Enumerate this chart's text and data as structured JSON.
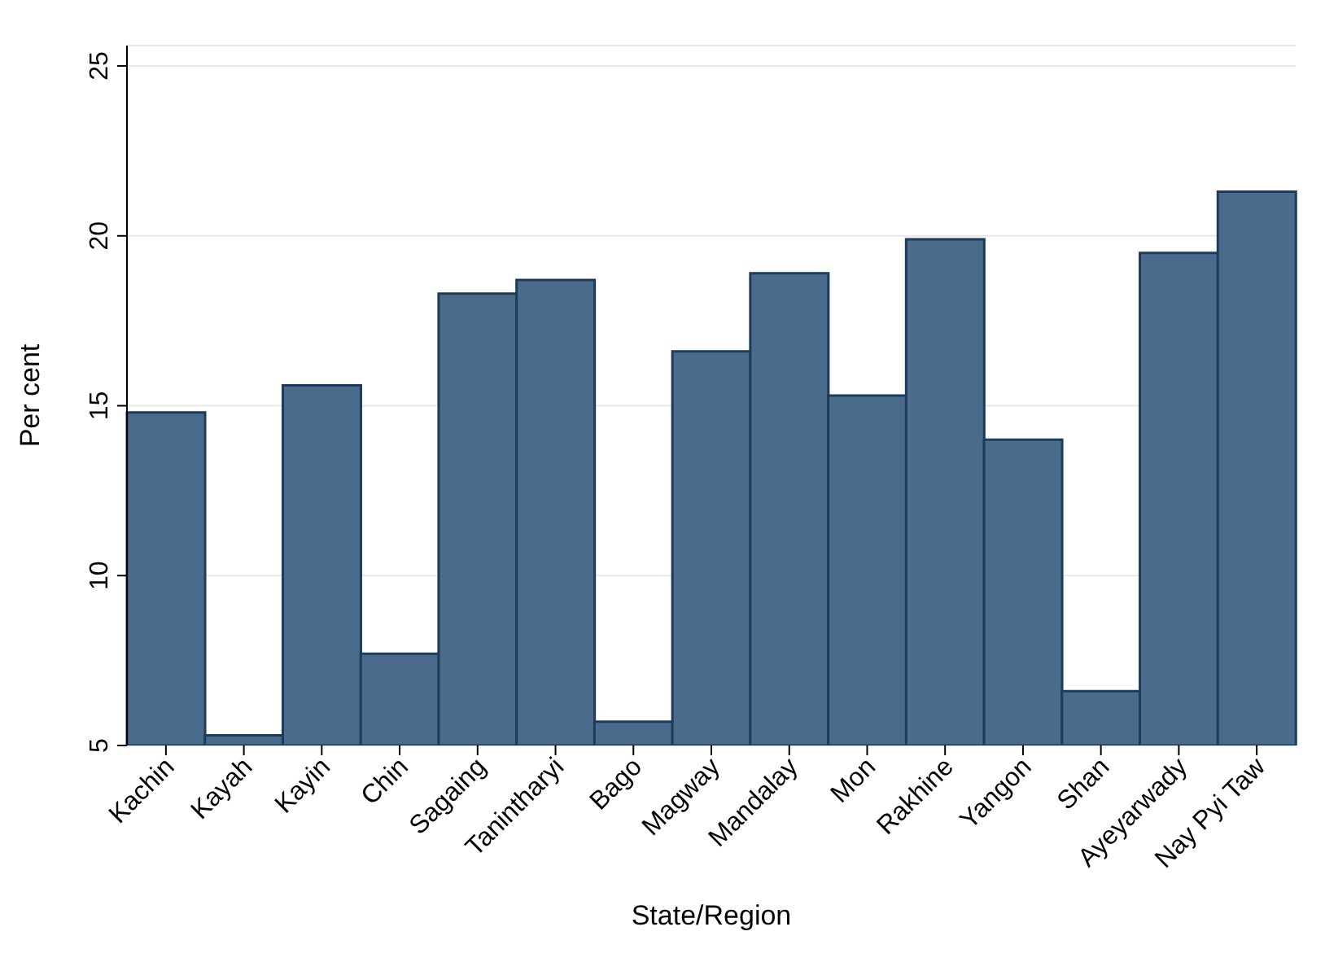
{
  "chart_data": {
    "type": "bar",
    "xlabel": "State/Region",
    "ylabel": "Per cent",
    "categories": [
      "Kachin",
      "Kayah",
      "Kayin",
      "Chin",
      "Sagaing",
      "Tanintharyi",
      "Bago",
      "Magway",
      "Mandalay",
      "Mon",
      "Rakhine",
      "Yangon",
      "Shan",
      "Ayeyarwady",
      "Nay Pyi Taw"
    ],
    "values": [
      14.8,
      5.3,
      15.6,
      7.7,
      18.3,
      18.7,
      5.7,
      16.6,
      18.9,
      15.3,
      19.9,
      14.0,
      6.6,
      19.5,
      21.3
    ],
    "color": "#4a6b8c",
    "ylim": [
      5,
      25.6
    ],
    "yticks": [
      5,
      10,
      15,
      20,
      25
    ],
    "grid": "y"
  }
}
